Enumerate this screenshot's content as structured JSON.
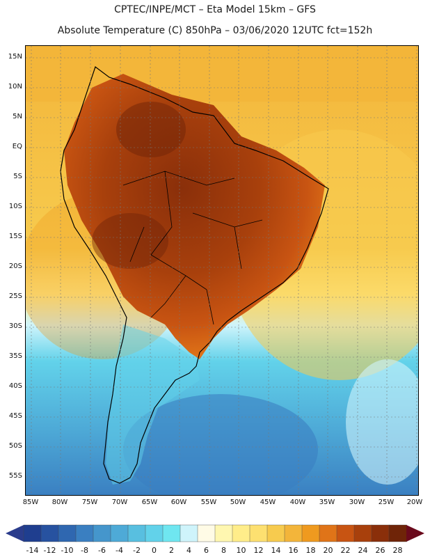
{
  "header": {
    "line1": "CPTEC/INPE/MCT –  Eta Model 15km – GFS",
    "line2": "Absolute Temperature (C) 850hPa – 03/06/2020 12UTC fct=152h"
  },
  "map": {
    "lat_labels": [
      "15N",
      "10N",
      "5N",
      "EQ",
      "5S",
      "10S",
      "15S",
      "20S",
      "25S",
      "30S",
      "35S",
      "40S",
      "45S",
      "50S",
      "55S"
    ],
    "lon_labels": [
      "85W",
      "80W",
      "75W",
      "70W",
      "65W",
      "60W",
      "55W",
      "50W",
      "45W",
      "40W",
      "35W",
      "30W",
      "25W",
      "20W"
    ]
  },
  "colorbar": {
    "labels": [
      "-14",
      "-12",
      "-10",
      "-8",
      "-6",
      "-4",
      "-2",
      "0",
      "2",
      "4",
      "6",
      "8",
      "10",
      "12",
      "14",
      "16",
      "18",
      "20",
      "22",
      "24",
      "26",
      "28"
    ],
    "colors": [
      "#1f3e8f",
      "#2752a0",
      "#2f67b0",
      "#3a7fc1",
      "#4596cc",
      "#4eaad7",
      "#58bfe0",
      "#62d2ea",
      "#6fe6f0",
      "#cff4fb",
      "#fffbe6",
      "#fff7b0",
      "#ffed8a",
      "#fde070",
      "#f7cb4e",
      "#f3b53a",
      "#ef9a1f",
      "#e07418",
      "#c85412",
      "#a8400c",
      "#8a2f0a",
      "#6f2408"
    ],
    "low_arrow_color": "#2a3c8c",
    "high_arrow_color": "#6a0a1c"
  }
}
